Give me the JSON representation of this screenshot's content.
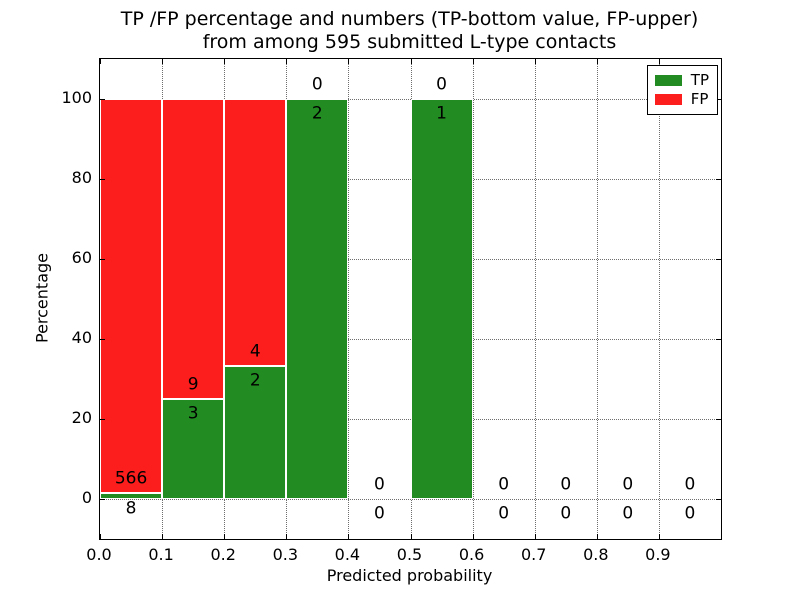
{
  "figure": {
    "title_line1": "TP /FP percentage and numbers (TP-bottom value, FP-upper)",
    "title_line2": "from among 595 submitted L-type contacts",
    "background_color": "#ffffff"
  },
  "chart_data": {
    "type": "bar",
    "stacked": true,
    "title": "TP /FP percentage and numbers (TP-bottom value, FP-upper)\nfrom among 595 submitted L-type contacts",
    "xlabel": "Predicted probability",
    "ylabel": "Percentage",
    "xlim": [
      0.0,
      1.0
    ],
    "ylim": [
      -10,
      110
    ],
    "xtick_labels": [
      "0.0",
      "0.1",
      "0.2",
      "0.3",
      "0.4",
      "0.5",
      "0.6",
      "0.7",
      "0.8",
      "0.9"
    ],
    "ytick_values": [
      0,
      20,
      40,
      60,
      80,
      100
    ],
    "grid": "dotted both axes",
    "bar_edge_color": "#ffffff",
    "legend": {
      "position": "upper right",
      "entries": [
        {
          "label": "TP",
          "color": "#228b22"
        },
        {
          "label": "FP",
          "color": "#fc1d1d"
        }
      ]
    },
    "annotation_rule": "per bin: FP count printed above TP count; bars show TP%% (green, bottom) stacked with FP%% (red, top) of bin total",
    "bins": [
      {
        "x_start": 0.0,
        "x_end": 0.1,
        "tp": 8,
        "fp": 566
      },
      {
        "x_start": 0.1,
        "x_end": 0.2,
        "tp": 3,
        "fp": 9
      },
      {
        "x_start": 0.2,
        "x_end": 0.3,
        "tp": 2,
        "fp": 4
      },
      {
        "x_start": 0.3,
        "x_end": 0.4,
        "tp": 2,
        "fp": 0
      },
      {
        "x_start": 0.4,
        "x_end": 0.5,
        "tp": 0,
        "fp": 0
      },
      {
        "x_start": 0.5,
        "x_end": 0.6,
        "tp": 1,
        "fp": 0
      },
      {
        "x_start": 0.6,
        "x_end": 0.7,
        "tp": 0,
        "fp": 0
      },
      {
        "x_start": 0.7,
        "x_end": 0.8,
        "tp": 0,
        "fp": 0
      },
      {
        "x_start": 0.8,
        "x_end": 0.9,
        "tp": 0,
        "fp": 0
      },
      {
        "x_start": 0.9,
        "x_end": 1.0,
        "tp": 0,
        "fp": 0
      }
    ]
  }
}
